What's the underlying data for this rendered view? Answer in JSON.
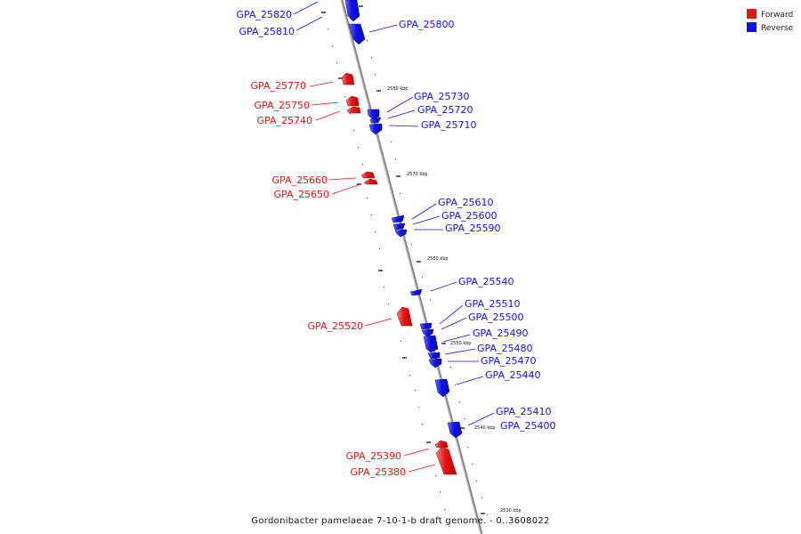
{
  "caption": "Gordonibacter pamelaeae 7-10-1-b draft genome. - 0..3608022",
  "legend": [
    {
      "label": "Forward",
      "color": "#ee1111"
    },
    {
      "label": "Reverse",
      "color": "#1111ee"
    }
  ],
  "strand_colors": {
    "forward": "#ee1111",
    "reverse": "#1111ee"
  },
  "kbp_marks": [
    {
      "kb": 2580,
      "label": "2580 kbp"
    },
    {
      "kb": 2570,
      "label": "2570 kbp"
    },
    {
      "kb": 2560,
      "label": "2560 kbp"
    },
    {
      "kb": 2550,
      "label": "2550 kbp"
    },
    {
      "kb": 2540,
      "label": "2540 kbp"
    },
    {
      "kb": 2530,
      "label": "2530 kbp"
    }
  ],
  "genes": [
    {
      "id": "GPA_25820",
      "strand": "reverse"
    },
    {
      "id": "GPA_25810",
      "strand": "reverse"
    },
    {
      "id": "GPA_25800",
      "strand": "reverse"
    },
    {
      "id": "GPA_25770",
      "strand": "forward"
    },
    {
      "id": "GPA_25750",
      "strand": "forward"
    },
    {
      "id": "GPA_25740",
      "strand": "forward"
    },
    {
      "id": "GPA_25730",
      "strand": "reverse"
    },
    {
      "id": "GPA_25720",
      "strand": "reverse"
    },
    {
      "id": "GPA_25710",
      "strand": "reverse"
    },
    {
      "id": "GPA_25660",
      "strand": "forward"
    },
    {
      "id": "GPA_25650",
      "strand": "forward"
    },
    {
      "id": "GPA_25610",
      "strand": "reverse"
    },
    {
      "id": "GPA_25600",
      "strand": "reverse"
    },
    {
      "id": "GPA_25590",
      "strand": "reverse"
    },
    {
      "id": "GPA_25540",
      "strand": "reverse"
    },
    {
      "id": "GPA_25520",
      "strand": "forward"
    },
    {
      "id": "GPA_25510",
      "strand": "reverse"
    },
    {
      "id": "GPA_25500",
      "strand": "reverse"
    },
    {
      "id": "GPA_25490",
      "strand": "reverse"
    },
    {
      "id": "GPA_25480",
      "strand": "reverse"
    },
    {
      "id": "GPA_25470",
      "strand": "reverse"
    },
    {
      "id": "GPA_25440",
      "strand": "reverse"
    },
    {
      "id": "GPA_25410",
      "strand": "reverse"
    },
    {
      "id": "GPA_25400",
      "strand": "reverse"
    },
    {
      "id": "GPA_25390",
      "strand": "forward"
    },
    {
      "id": "GPA_25380",
      "strand": "forward"
    }
  ]
}
